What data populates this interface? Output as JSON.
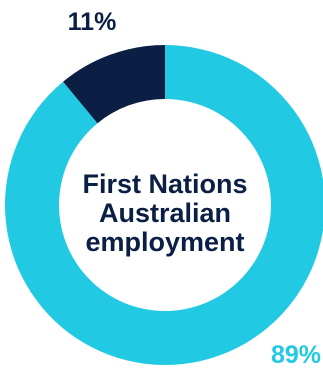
{
  "chart_data": {
    "type": "pie",
    "variant": "donut",
    "title": "",
    "center_label": [
      "First Nations",
      "Australian",
      "employment"
    ],
    "slices": [
      {
        "label": "11%",
        "value": 11,
        "color": "#0b1f44"
      },
      {
        "label": "89%",
        "value": 89,
        "color": "#22c9e3"
      }
    ]
  },
  "colors": {
    "center_text": "#0b1f44",
    "small_slice_label": "#0b1f44",
    "large_slice_label": "#22c9e3"
  }
}
